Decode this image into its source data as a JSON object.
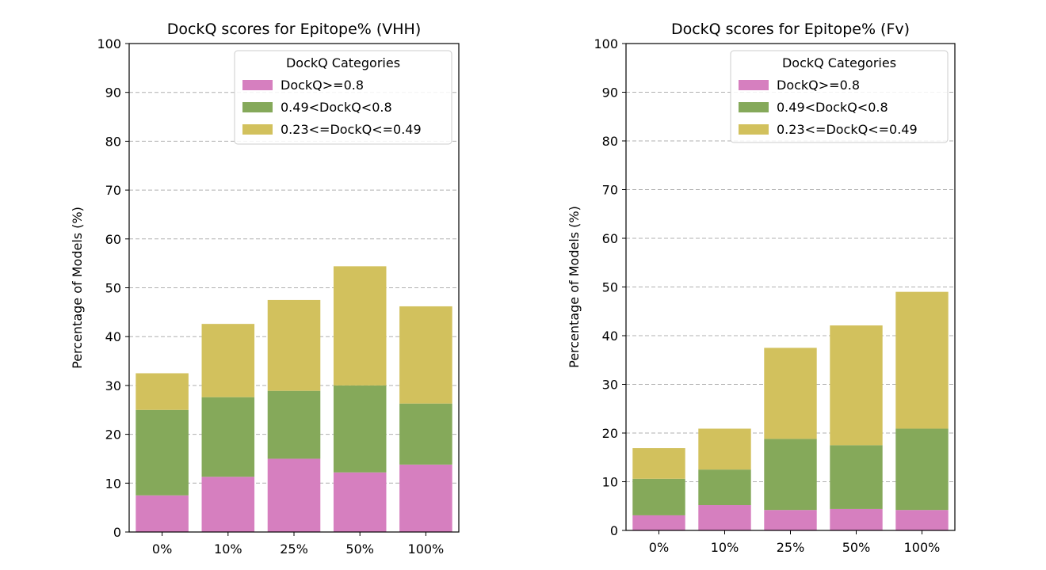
{
  "chart_data": [
    {
      "type": "bar",
      "stacked": true,
      "title": "DockQ scores for Epitope% (VHH)",
      "xlabel": "",
      "ylabel": "Percentage of Models (%)",
      "ylim": [
        0,
        100
      ],
      "yticks": [
        0,
        10,
        20,
        30,
        40,
        50,
        60,
        70,
        80,
        90,
        100
      ],
      "grid": "y-dashed",
      "categories": [
        "0%",
        "10%",
        "25%",
        "50%",
        "100%"
      ],
      "legend": {
        "title": "DockQ Categories",
        "placement": "top-right"
      },
      "series": [
        {
          "name": "DockQ>=0.8",
          "color": "#d67fbf",
          "values": [
            7.5,
            11.3,
            15.0,
            12.2,
            13.8
          ]
        },
        {
          "name": "0.49<DockQ<0.8",
          "color": "#85a95a",
          "values": [
            17.5,
            16.3,
            13.9,
            17.8,
            12.5
          ]
        },
        {
          "name": "0.23<=DockQ<=0.49",
          "color": "#d2c15d",
          "values": [
            7.5,
            15.0,
            18.6,
            24.4,
            19.9
          ]
        }
      ]
    },
    {
      "type": "bar",
      "stacked": true,
      "title": "DockQ scores for Epitope% (Fv)",
      "xlabel": "",
      "ylabel": "Percentage of Models (%)",
      "ylim": [
        0,
        100
      ],
      "yticks": [
        0,
        10,
        20,
        30,
        40,
        50,
        60,
        70,
        80,
        90,
        100
      ],
      "grid": "y-dashed",
      "categories": [
        "0%",
        "10%",
        "25%",
        "50%",
        "100%"
      ],
      "legend": {
        "title": "DockQ Categories",
        "placement": "top-right"
      },
      "series": [
        {
          "name": "DockQ>=0.8",
          "color": "#d67fbf",
          "values": [
            3.1,
            5.2,
            4.2,
            4.4,
            4.2
          ]
        },
        {
          "name": "0.49<DockQ<0.8",
          "color": "#85a95a",
          "values": [
            7.5,
            7.3,
            14.6,
            13.1,
            16.7
          ]
        },
        {
          "name": "0.23<=DockQ<=0.49",
          "color": "#d2c15d",
          "values": [
            6.3,
            8.4,
            18.7,
            24.6,
            28.1
          ]
        }
      ]
    }
  ]
}
